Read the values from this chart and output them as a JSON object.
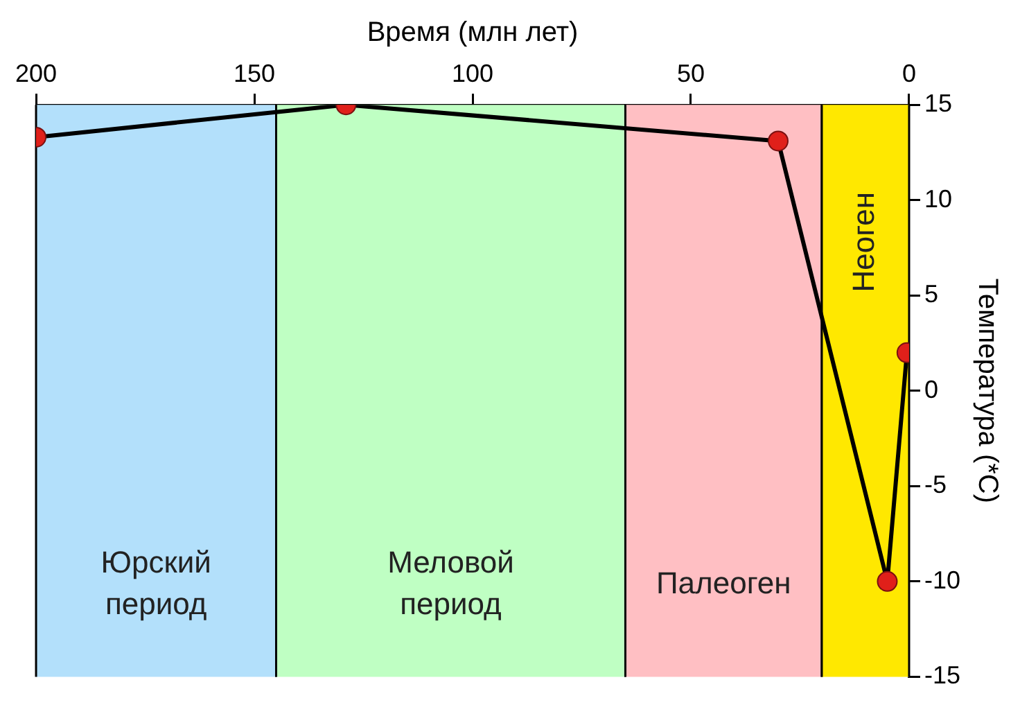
{
  "chart_data": {
    "type": "line",
    "xlabel": "Время (млн лет)",
    "ylabel": "Температура (*C)",
    "x": [
      200,
      129,
      30,
      5,
      0.5
    ],
    "series": [
      {
        "color": "#000000",
        "colors": [
          "#e0201a",
          "#e0201a",
          "#e0201a",
          "#e0201a",
          "#e0201a"
        ],
        "values": [
          13.3,
          15,
          13.1,
          -10,
          2
        ]
      }
    ],
    "xlim": [
      200,
      0
    ],
    "xticks": [
      200,
      150,
      100,
      50,
      0
    ],
    "ylim": [
      -15,
      15
    ],
    "yticks": [
      -15,
      -10,
      -5,
      0,
      5,
      10,
      15
    ],
    "bands": [
      {
        "axis": "x",
        "from": 200,
        "to": 145,
        "label": "Юрский период",
        "color": "#b3e0fb"
      },
      {
        "axis": "x",
        "from": 145,
        "to": 65,
        "label": "Меловой период",
        "color": "#bfffc3"
      },
      {
        "axis": "x",
        "from": 65,
        "to": 20,
        "label": "Палеоген",
        "color": "#ffbfc3"
      },
      {
        "axis": "x",
        "from": 20,
        "to": 0,
        "label": "Неоген",
        "color": "#ffe800"
      }
    ],
    "marker": "circle",
    "line_style": "solid",
    "grid": false,
    "legend": false
  }
}
